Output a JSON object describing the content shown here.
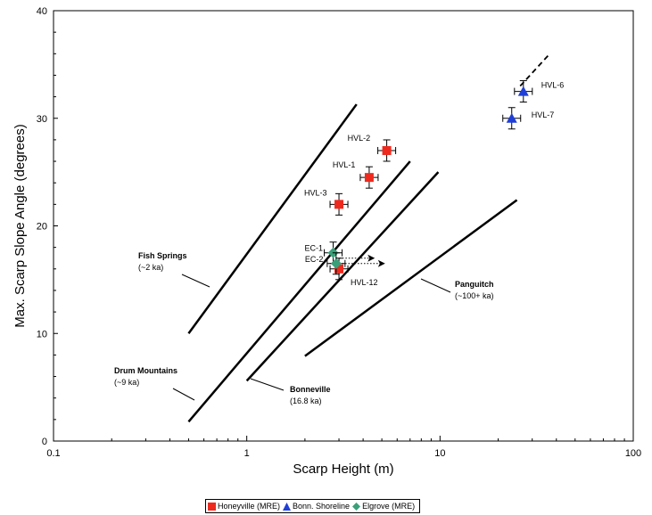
{
  "chart_data": {
    "type": "scatter",
    "title": "",
    "xlabel": "Scarp Height (m)",
    "ylabel": "Max. Scarp Slope Angle (degrees)",
    "xscale": "log",
    "xlim": [
      0.1,
      100
    ],
    "ylim": [
      0,
      40
    ],
    "xticks": [
      "0.1",
      "1",
      "10",
      "100"
    ],
    "yticks": [
      "0",
      "10",
      "20",
      "30",
      "40"
    ],
    "grid": false,
    "legend_position": "bottom-center",
    "series": [
      {
        "name": "Honeyville (MRE)",
        "marker": "square",
        "color": "#ee2a1f",
        "points": [
          {
            "label": "HVL-2",
            "x": 5.3,
            "y": 27.0
          },
          {
            "label": "HVL-1",
            "x": 4.3,
            "y": 24.5
          },
          {
            "label": "HVL-3",
            "x": 3.0,
            "y": 22.0
          },
          {
            "label": "HVL-12",
            "x": 3.0,
            "y": 16.0
          }
        ]
      },
      {
        "name": "Bonn. Shoreline",
        "marker": "triangle",
        "color": "#1f3fd6",
        "points": [
          {
            "label": "HVL-6",
            "x": 27.0,
            "y": 32.5
          },
          {
            "label": "HVL-7",
            "x": 23.5,
            "y": 30.0
          }
        ]
      },
      {
        "name": "Elgrove (MRE)",
        "marker": "diamond",
        "color": "#3aa07a",
        "points": [
          {
            "label": "EC-1",
            "x": 2.8,
            "y": 17.5
          },
          {
            "label": "EC-2",
            "x": 2.9,
            "y": 16.5
          }
        ]
      }
    ],
    "reference_lines": [
      {
        "name": "Fish Springs",
        "age": "(~2 ka)",
        "x": [
          0.5,
          3.7
        ],
        "y": [
          10.0,
          31.3
        ]
      },
      {
        "name": "Drum Mountains",
        "age": "(~9 ka)",
        "x": [
          0.5,
          7.0
        ],
        "y": [
          1.8,
          26.0
        ]
      },
      {
        "name": "Bonneville",
        "age": "(16.8 ka)",
        "x": [
          1.0,
          9.8
        ],
        "y": [
          5.6,
          25.0
        ],
        "dashed_extension": {
          "x": [
            26.0,
            37.0
          ],
          "y": [
            33.0,
            36.0
          ]
        }
      },
      {
        "name": "Panguitch",
        "age": "(~100+ ka)",
        "x": [
          2.0,
          25.0
        ],
        "y": [
          7.9,
          22.4
        ]
      }
    ],
    "annotations": [
      {
        "text": "Fish Springs",
        "bold": true
      },
      {
        "text": "(~2 ka)",
        "bold": false
      },
      {
        "text": "Drum Mountains",
        "bold": true
      },
      {
        "text": "(~9 ka)",
        "bold": false
      },
      {
        "text": "Bonneville",
        "bold": true
      },
      {
        "text": "(16.8 ka)",
        "bold": false
      },
      {
        "text": "Panguitch",
        "bold": true
      },
      {
        "text": "(~100+ ka)",
        "bold": false
      }
    ]
  }
}
